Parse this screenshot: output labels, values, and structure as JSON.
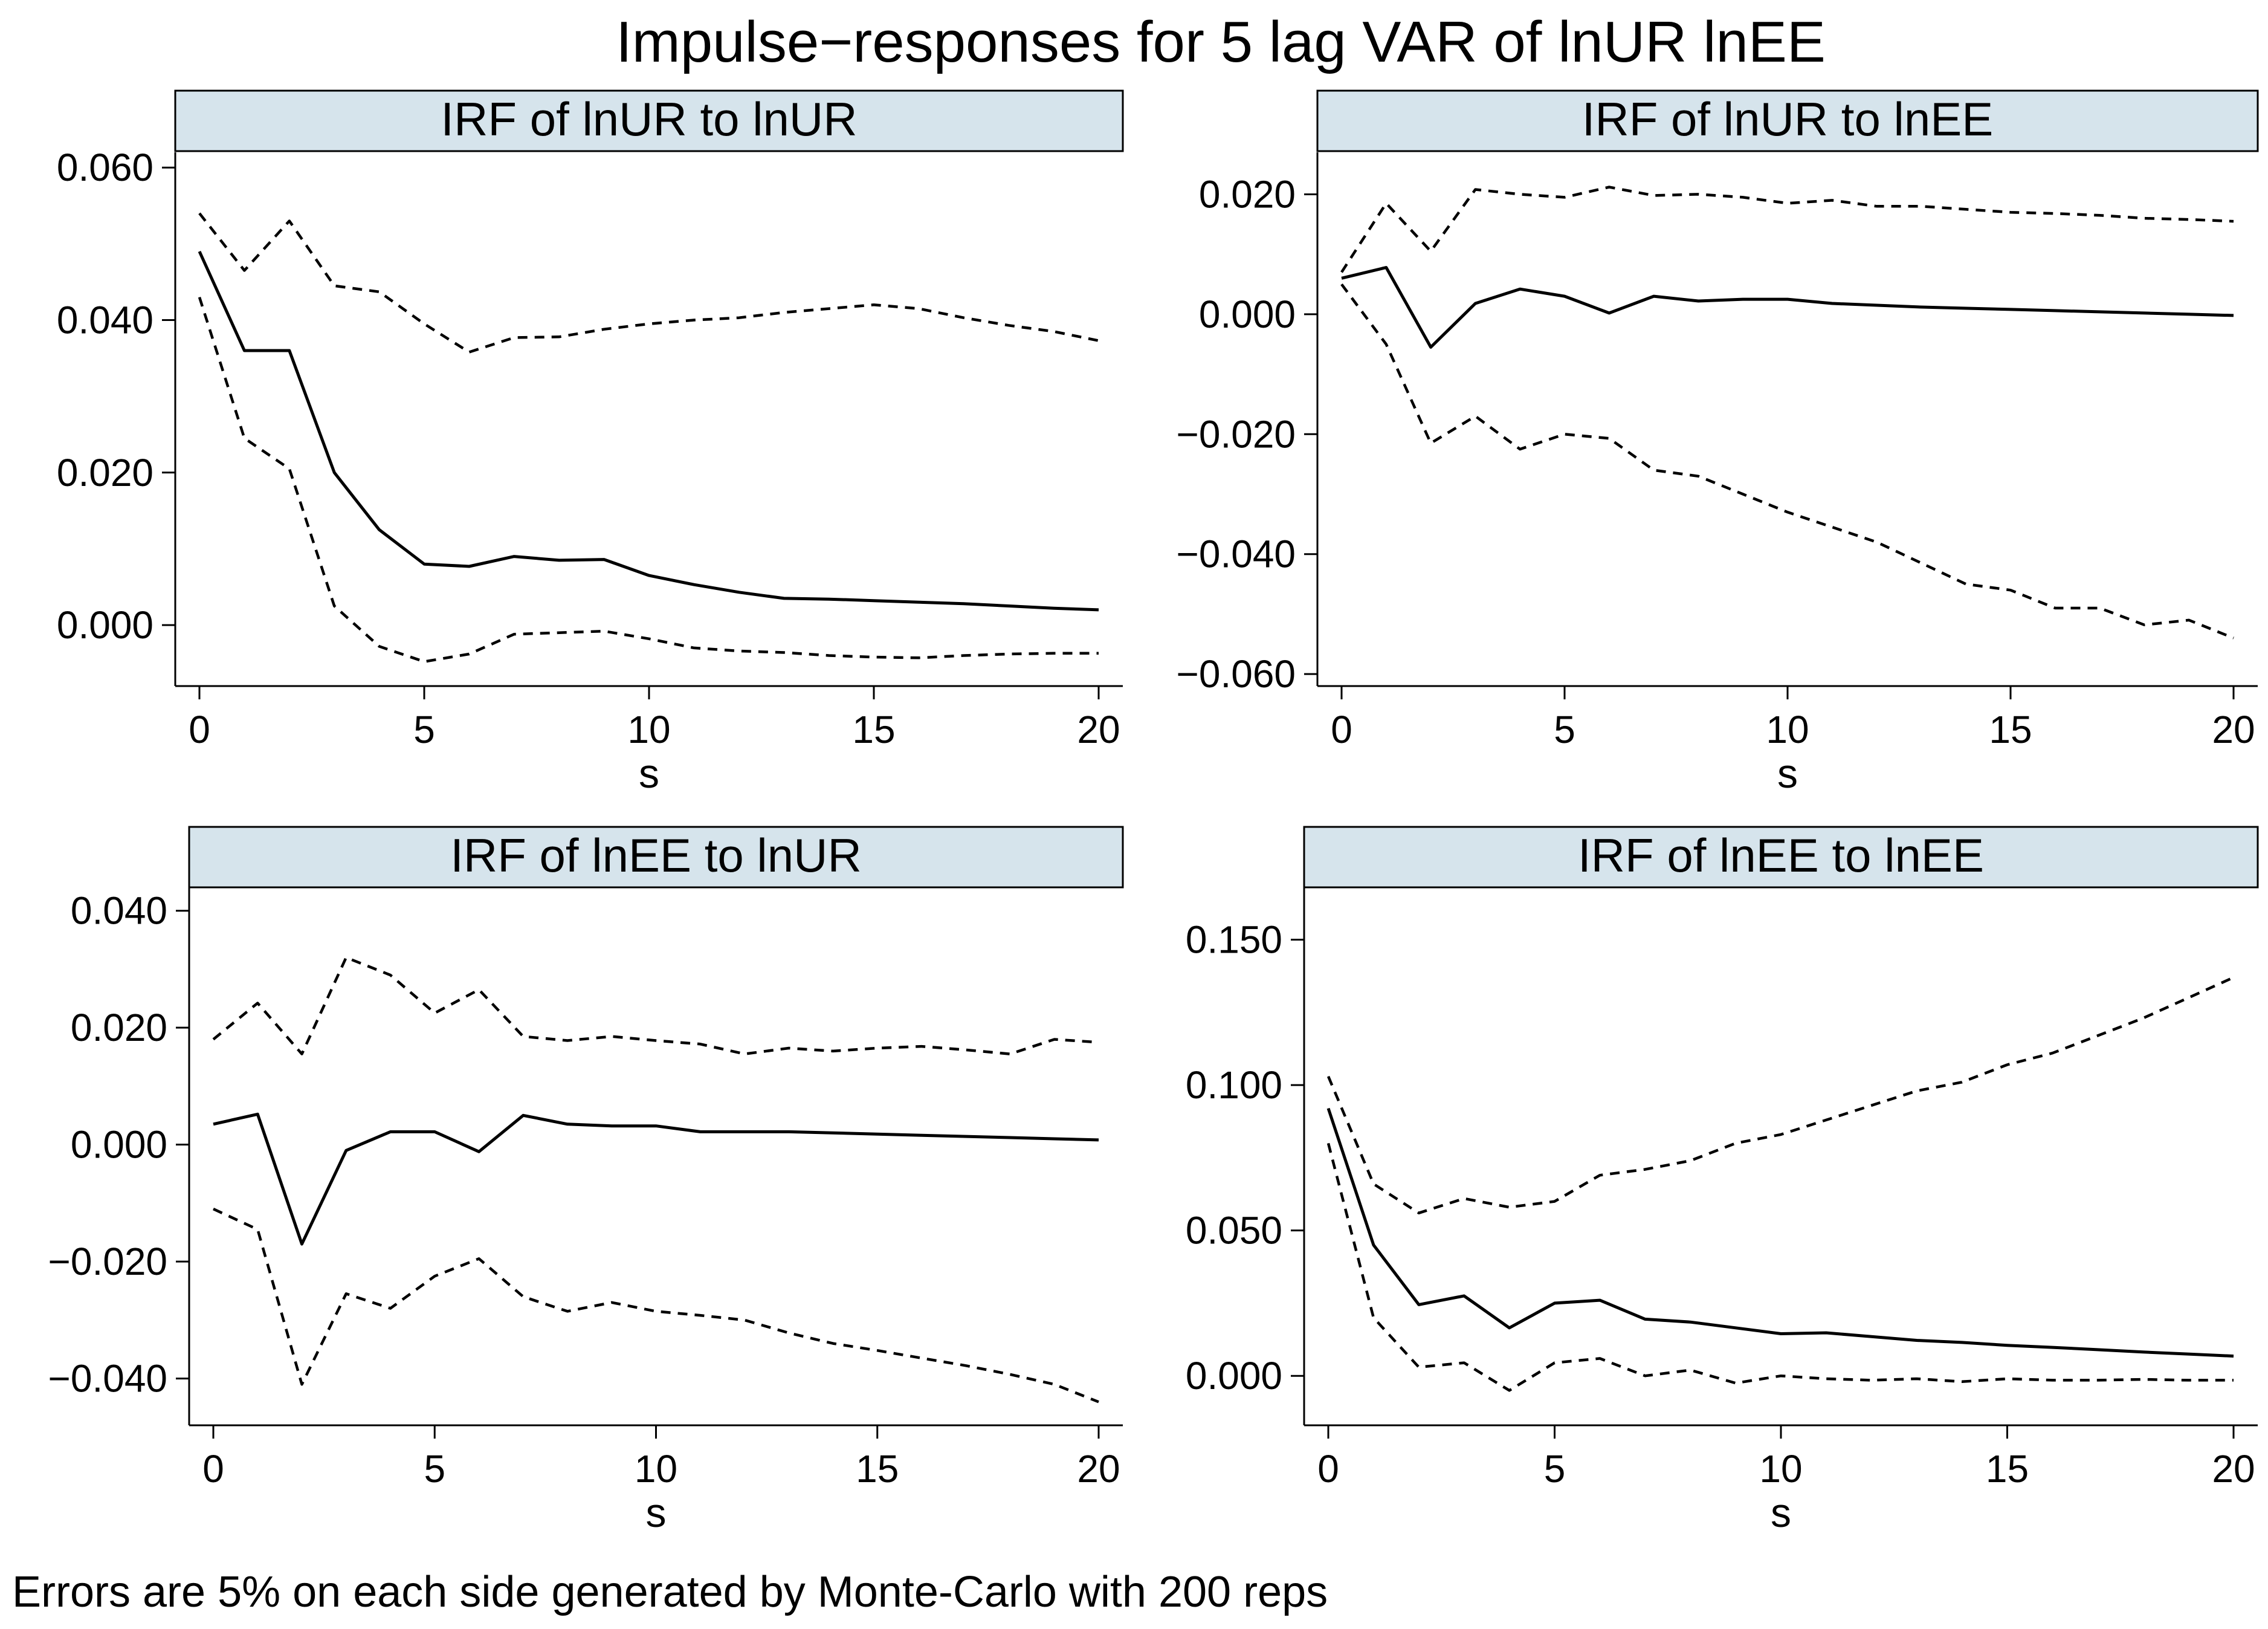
{
  "title": "Impulse−responses for 5 lag VAR of lnUR lnEE",
  "note": "Errors are 5% on each side generated by Monte-Carlo with 200 reps",
  "colors": {
    "strip_fill": "#d6e4ec",
    "line": "#000000",
    "background": "#ffffff"
  },
  "chart_data": [
    {
      "type": "line",
      "title": "IRF of lnUR to lnUR",
      "xlabel": "s",
      "ylabel": "",
      "xlim": [
        0,
        20
      ],
      "ylim": [
        -0.008,
        0.062
      ],
      "xticks": [
        0,
        5,
        10,
        15,
        20
      ],
      "xtick_labels": [
        "0",
        "5",
        "10",
        "15",
        "20"
      ],
      "yticks": [
        0.06,
        0.04,
        0.02,
        0.0
      ],
      "ytick_labels": [
        "0.060",
        "0.040",
        "0.020",
        "0.000"
      ],
      "x": [
        0,
        1,
        2,
        3,
        4,
        5,
        6,
        7,
        8,
        9,
        10,
        11,
        12,
        13,
        14,
        15,
        16,
        17,
        18,
        19,
        20
      ],
      "series": [
        {
          "name": "irf",
          "style": "solid",
          "values": [
            0.049,
            0.036,
            0.036,
            0.02,
            0.0125,
            0.008,
            0.0077,
            0.009,
            0.0085,
            0.0086,
            0.0065,
            0.0053,
            0.0043,
            0.0035,
            0.0034,
            0.0032,
            0.003,
            0.0028,
            0.0025,
            0.0022,
            0.002
          ]
        },
        {
          "name": "upper",
          "style": "dashed",
          "values": [
            0.054,
            0.0465,
            0.053,
            0.0445,
            0.0437,
            0.0395,
            0.0358,
            0.0377,
            0.0378,
            0.0388,
            0.0395,
            0.04,
            0.0403,
            0.041,
            0.0415,
            0.042,
            0.0415,
            0.0403,
            0.0393,
            0.0385,
            0.0373
          ]
        },
        {
          "name": "lower",
          "style": "dashed",
          "values": [
            0.043,
            0.0245,
            0.0205,
            0.0025,
            -0.0028,
            -0.0048,
            -0.0038,
            -0.0012,
            -0.001,
            -0.0008,
            -0.0018,
            -0.003,
            -0.0034,
            -0.0036,
            -0.004,
            -0.0042,
            -0.0043,
            -0.004,
            -0.0038,
            -0.0037,
            -0.0037
          ]
        }
      ]
    },
    {
      "type": "line",
      "title": "IRF of lnUR to lnEE",
      "xlabel": "s",
      "ylabel": "",
      "xlim": [
        0,
        20
      ],
      "ylim": [
        -0.062,
        0.027
      ],
      "xticks": [
        0,
        5,
        10,
        15,
        20
      ],
      "xtick_labels": [
        "0",
        "5",
        "10",
        "15",
        "20"
      ],
      "yticks": [
        0.02,
        0.0,
        -0.02,
        -0.04,
        -0.06
      ],
      "ytick_labels": [
        "0.020",
        "0.000",
        "−0.020",
        "−0.040",
        "−0.060"
      ],
      "x": [
        0,
        1,
        2,
        3,
        4,
        5,
        6,
        7,
        8,
        9,
        10,
        11,
        12,
        13,
        14,
        15,
        16,
        17,
        18,
        19,
        20
      ],
      "series": [
        {
          "name": "irf",
          "style": "solid",
          "values": [
            0.006,
            0.0078,
            -0.0055,
            0.0018,
            0.0042,
            0.003,
            0.0002,
            0.003,
            0.0022,
            0.0025,
            0.0025,
            0.0018,
            0.0015,
            0.0012,
            0.001,
            0.0008,
            0.0006,
            0.0004,
            0.0002,
            0.0,
            -0.0002
          ]
        },
        {
          "name": "upper",
          "style": "dashed",
          "values": [
            0.007,
            0.0185,
            0.0105,
            0.0208,
            0.02,
            0.0195,
            0.0212,
            0.0198,
            0.02,
            0.0195,
            0.0185,
            0.019,
            0.018,
            0.018,
            0.0175,
            0.017,
            0.0168,
            0.0165,
            0.016,
            0.0158,
            0.0155
          ]
        },
        {
          "name": "lower",
          "style": "dashed",
          "values": [
            0.005,
            -0.005,
            -0.0215,
            -0.017,
            -0.0225,
            -0.02,
            -0.0207,
            -0.026,
            -0.027,
            -0.03,
            -0.033,
            -0.0355,
            -0.038,
            -0.0415,
            -0.045,
            -0.046,
            -0.049,
            -0.049,
            -0.0518,
            -0.051,
            -0.054
          ]
        }
      ]
    },
    {
      "type": "line",
      "title": "IRF of lnEE to lnUR",
      "xlabel": "s",
      "ylabel": "",
      "xlim": [
        0,
        20
      ],
      "ylim": [
        -0.048,
        0.044
      ],
      "xticks": [
        0,
        5,
        10,
        15,
        20
      ],
      "xtick_labels": [
        "0",
        "5",
        "10",
        "15",
        "20"
      ],
      "yticks": [
        0.04,
        0.02,
        0.0,
        -0.02,
        -0.04
      ],
      "ytick_labels": [
        "0.040",
        "0.020",
        "0.000",
        "−0.020",
        "−0.040"
      ],
      "x": [
        0,
        1,
        2,
        3,
        4,
        5,
        6,
        7,
        8,
        9,
        10,
        11,
        12,
        13,
        14,
        15,
        16,
        17,
        18,
        19,
        20
      ],
      "series": [
        {
          "name": "irf",
          "style": "solid",
          "values": [
            0.0035,
            0.0052,
            -0.017,
            -0.001,
            0.0022,
            0.0022,
            -0.0012,
            0.005,
            0.0035,
            0.0032,
            0.0032,
            0.0022,
            0.0022,
            0.0022,
            0.002,
            0.0018,
            0.0016,
            0.0014,
            0.0012,
            0.001,
            0.0008
          ]
        },
        {
          "name": "upper",
          "style": "dashed",
          "values": [
            0.018,
            0.0242,
            0.0155,
            0.032,
            0.029,
            0.0225,
            0.0265,
            0.0185,
            0.0178,
            0.0185,
            0.0178,
            0.0172,
            0.0155,
            0.0165,
            0.016,
            0.0165,
            0.0168,
            0.0162,
            0.0155,
            0.018,
            0.0175
          ]
        },
        {
          "name": "lower",
          "style": "dashed",
          "values": [
            -0.011,
            -0.0145,
            -0.041,
            -0.0255,
            -0.028,
            -0.0225,
            -0.0195,
            -0.026,
            -0.0285,
            -0.027,
            -0.0285,
            -0.0292,
            -0.03,
            -0.0322,
            -0.034,
            -0.0352,
            -0.0365,
            -0.0378,
            -0.0393,
            -0.041,
            -0.044
          ]
        }
      ]
    },
    {
      "type": "line",
      "title": "IRF of lnEE to lnEE",
      "xlabel": "s",
      "ylabel": "",
      "xlim": [
        0,
        20
      ],
      "ylim": [
        -0.017,
        0.168
      ],
      "xticks": [
        0,
        5,
        10,
        15,
        20
      ],
      "xtick_labels": [
        "0",
        "5",
        "10",
        "15",
        "20"
      ],
      "yticks": [
        0.15,
        0.1,
        0.05,
        0.0
      ],
      "ytick_labels": [
        "0.150",
        "0.100",
        "0.050",
        "0.000"
      ],
      "x": [
        0,
        1,
        2,
        3,
        4,
        5,
        6,
        7,
        8,
        9,
        10,
        11,
        12,
        13,
        14,
        15,
        16,
        17,
        18,
        19,
        20
      ],
      "series": [
        {
          "name": "irf",
          "style": "solid",
          "values": [
            0.092,
            0.045,
            0.0245,
            0.0275,
            0.0165,
            0.025,
            0.026,
            0.0195,
            0.0185,
            0.0165,
            0.0145,
            0.0148,
            0.0135,
            0.0122,
            0.0115,
            0.0105,
            0.0098,
            0.009,
            0.0082,
            0.0075,
            0.0068
          ]
        },
        {
          "name": "upper",
          "style": "dashed",
          "values": [
            0.103,
            0.066,
            0.056,
            0.061,
            0.058,
            0.06,
            0.069,
            0.071,
            0.074,
            0.08,
            0.083,
            0.088,
            0.093,
            0.098,
            0.101,
            0.107,
            0.111,
            0.117,
            0.123,
            0.13,
            0.137
          ]
        },
        {
          "name": "lower",
          "style": "dashed",
          "values": [
            0.08,
            0.02,
            0.003,
            0.0045,
            -0.005,
            0.0045,
            0.006,
            0.0,
            0.002,
            -0.0025,
            0.0,
            -0.001,
            -0.0015,
            -0.001,
            -0.002,
            -0.001,
            -0.0015,
            -0.0015,
            -0.0012,
            -0.0015,
            -0.0015
          ]
        }
      ]
    }
  ]
}
